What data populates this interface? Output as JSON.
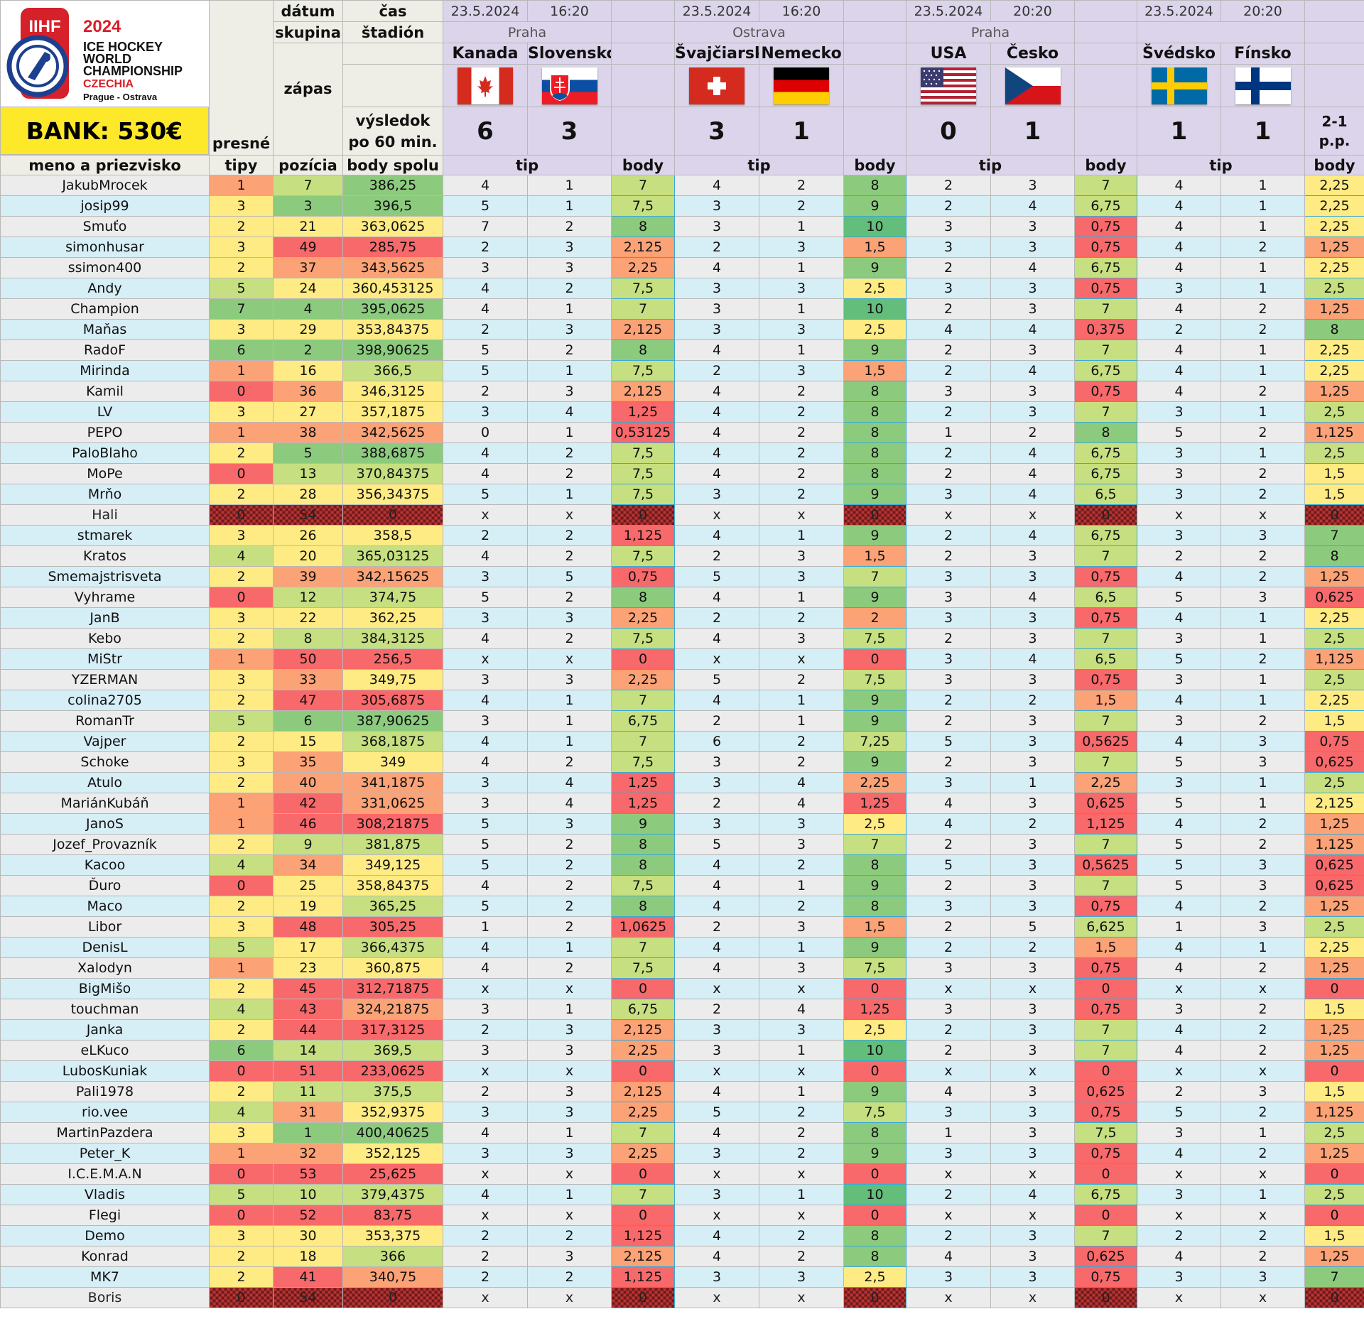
{
  "header": {
    "logo": {
      "brand": "IIHF",
      "year": "2024",
      "line1": "ICE HOCKEY",
      "line2": "WORLD",
      "line3": "CHAMPIONSHIP",
      "country": "CZECHIA",
      "cities": "Prague - Ostrava"
    },
    "bank": "BANK: 530€",
    "labels": {
      "datum": "dátum",
      "cas": "čas",
      "skupina": "skupina",
      "stadion": "štadión",
      "zapas": "zápas",
      "vysledok1": "výsledok",
      "vysledok2": "po 60 min.",
      "presne": "presné",
      "tipy": "tipy",
      "meno": "meno a priezvisko",
      "pozicia": "pozícia",
      "body_spolu": "body spolu",
      "tip": "tip",
      "body": "body"
    },
    "matches": [
      {
        "date": "23.5.2024",
        "time": "16:20",
        "venue": "Praha",
        "home": "Kanada",
        "away": "Slovensko",
        "home_flag": "ca",
        "away_flag": "sk",
        "home_score": "6",
        "away_score": "3",
        "note": ""
      },
      {
        "date": "23.5.2024",
        "time": "16:20",
        "venue": "Ostrava",
        "home": "Švajčiarsko",
        "away": "Nemecko",
        "home_flag": "ch",
        "away_flag": "de",
        "home_score": "3",
        "away_score": "1",
        "note": ""
      },
      {
        "date": "23.5.2024",
        "time": "20:20",
        "venue": "Praha",
        "home": "USA",
        "away": "Česko",
        "home_flag": "us",
        "away_flag": "cz",
        "home_score": "0",
        "away_score": "1",
        "note": ""
      },
      {
        "date": "23.5.2024",
        "time": "20:20",
        "venue": "",
        "home": "Švédsko",
        "away": "Fínsko",
        "home_flag": "se",
        "away_flag": "fi",
        "home_score": "1",
        "away_score": "1",
        "note": "2-1 p.p."
      }
    ]
  },
  "colors": {
    "red": "#f8696b",
    "orange": "#fba276",
    "yellow": "#ffeb84",
    "lime": "#c6df80",
    "green": "#8ccb7e",
    "dark_green": "#63be7b"
  },
  "rows": [
    [
      "JakubMrocek",
      "1",
      "7",
      "386,25",
      "4",
      "1",
      "7",
      "4",
      "2",
      "8",
      "2",
      "3",
      "7",
      "4",
      "1",
      "2,25"
    ],
    [
      "josip99",
      "3",
      "3",
      "396,5",
      "5",
      "1",
      "7,5",
      "3",
      "2",
      "9",
      "2",
      "4",
      "6,75",
      "4",
      "1",
      "2,25"
    ],
    [
      "Smuťo",
      "2",
      "21",
      "363,0625",
      "7",
      "2",
      "8",
      "3",
      "1",
      "10",
      "3",
      "3",
      "0,75",
      "4",
      "1",
      "2,25"
    ],
    [
      "simonhusar",
      "3",
      "49",
      "285,75",
      "2",
      "3",
      "2,125",
      "2",
      "3",
      "1,5",
      "3",
      "3",
      "0,75",
      "4",
      "2",
      "1,25"
    ],
    [
      "ssimon400",
      "2",
      "37",
      "343,5625",
      "3",
      "3",
      "2,25",
      "4",
      "1",
      "9",
      "2",
      "4",
      "6,75",
      "4",
      "1",
      "2,25"
    ],
    [
      "Andy",
      "5",
      "24",
      "360,453125",
      "4",
      "2",
      "7,5",
      "3",
      "3",
      "2,5",
      "3",
      "3",
      "0,75",
      "3",
      "1",
      "2,5"
    ],
    [
      "Champion",
      "7",
      "4",
      "395,0625",
      "4",
      "1",
      "7",
      "3",
      "1",
      "10",
      "2",
      "3",
      "7",
      "4",
      "2",
      "1,25"
    ],
    [
      "Maňas",
      "3",
      "29",
      "353,84375",
      "2",
      "3",
      "2,125",
      "3",
      "3",
      "2,5",
      "4",
      "4",
      "0,375",
      "2",
      "2",
      "8"
    ],
    [
      "RadoF",
      "6",
      "2",
      "398,90625",
      "5",
      "2",
      "8",
      "4",
      "1",
      "9",
      "2",
      "3",
      "7",
      "4",
      "1",
      "2,25"
    ],
    [
      "Mirinda",
      "1",
      "16",
      "366,5",
      "5",
      "1",
      "7,5",
      "2",
      "3",
      "1,5",
      "2",
      "4",
      "6,75",
      "4",
      "1",
      "2,25"
    ],
    [
      "Kamil",
      "0",
      "36",
      "346,3125",
      "2",
      "3",
      "2,125",
      "4",
      "2",
      "8",
      "3",
      "3",
      "0,75",
      "4",
      "2",
      "1,25"
    ],
    [
      "LV",
      "3",
      "27",
      "357,1875",
      "3",
      "4",
      "1,25",
      "4",
      "2",
      "8",
      "2",
      "3",
      "7",
      "3",
      "1",
      "2,5"
    ],
    [
      "PEPO",
      "1",
      "38",
      "342,5625",
      "0",
      "1",
      "0,53125",
      "4",
      "2",
      "8",
      "1",
      "2",
      "8",
      "5",
      "2",
      "1,125"
    ],
    [
      "PaloBlaho",
      "2",
      "5",
      "388,6875",
      "4",
      "2",
      "7,5",
      "4",
      "2",
      "8",
      "2",
      "4",
      "6,75",
      "3",
      "1",
      "2,5"
    ],
    [
      "MoPe",
      "0",
      "13",
      "370,84375",
      "4",
      "2",
      "7,5",
      "4",
      "2",
      "8",
      "2",
      "4",
      "6,75",
      "3",
      "2",
      "1,5"
    ],
    [
      "Mrňo",
      "2",
      "28",
      "356,34375",
      "5",
      "1",
      "7,5",
      "3",
      "2",
      "9",
      "3",
      "4",
      "6,5",
      "3",
      "2",
      "1,5"
    ],
    [
      "Hali",
      "0",
      "54",
      "0",
      "x",
      "x",
      "0",
      "x",
      "x",
      "0",
      "x",
      "x",
      "0",
      "x",
      "x",
      "0"
    ],
    [
      "stmarek",
      "3",
      "26",
      "358,5",
      "2",
      "2",
      "1,125",
      "4",
      "1",
      "9",
      "2",
      "4",
      "6,75",
      "3",
      "3",
      "7"
    ],
    [
      "Kratos",
      "4",
      "20",
      "365,03125",
      "4",
      "2",
      "7,5",
      "2",
      "3",
      "1,5",
      "2",
      "3",
      "7",
      "2",
      "2",
      "8"
    ],
    [
      "Smemajstrisveta",
      "2",
      "39",
      "342,15625",
      "3",
      "5",
      "0,75",
      "5",
      "3",
      "7",
      "3",
      "3",
      "0,75",
      "4",
      "2",
      "1,25"
    ],
    [
      "Vyhrame",
      "0",
      "12",
      "374,75",
      "5",
      "2",
      "8",
      "4",
      "1",
      "9",
      "3",
      "4",
      "6,5",
      "5",
      "3",
      "0,625"
    ],
    [
      "JanB",
      "3",
      "22",
      "362,25",
      "3",
      "3",
      "2,25",
      "2",
      "2",
      "2",
      "3",
      "3",
      "0,75",
      "4",
      "1",
      "2,25"
    ],
    [
      "Kebo",
      "2",
      "8",
      "384,3125",
      "4",
      "2",
      "7,5",
      "4",
      "3",
      "7,5",
      "2",
      "3",
      "7",
      "3",
      "1",
      "2,5"
    ],
    [
      "MiStr",
      "1",
      "50",
      "256,5",
      "x",
      "x",
      "0",
      "x",
      "x",
      "0",
      "3",
      "4",
      "6,5",
      "5",
      "2",
      "1,125"
    ],
    [
      "YZERMAN",
      "3",
      "33",
      "349,75",
      "3",
      "3",
      "2,25",
      "5",
      "2",
      "7,5",
      "3",
      "3",
      "0,75",
      "3",
      "1",
      "2,5"
    ],
    [
      "colina2705",
      "2",
      "47",
      "305,6875",
      "4",
      "1",
      "7",
      "4",
      "1",
      "9",
      "2",
      "2",
      "1,5",
      "4",
      "1",
      "2,25"
    ],
    [
      "RomanTr",
      "5",
      "6",
      "387,90625",
      "3",
      "1",
      "6,75",
      "2",
      "1",
      "9",
      "2",
      "3",
      "7",
      "3",
      "2",
      "1,5"
    ],
    [
      "Vajper",
      "2",
      "15",
      "368,1875",
      "4",
      "1",
      "7",
      "6",
      "2",
      "7,25",
      "5",
      "3",
      "0,5625",
      "4",
      "3",
      "0,75"
    ],
    [
      "Schoke",
      "3",
      "35",
      "349",
      "4",
      "2",
      "7,5",
      "3",
      "2",
      "9",
      "2",
      "3",
      "7",
      "5",
      "3",
      "0,625"
    ],
    [
      "Atulo",
      "2",
      "40",
      "341,1875",
      "3",
      "4",
      "1,25",
      "3",
      "4",
      "2,25",
      "3",
      "1",
      "2,25",
      "3",
      "1",
      "2,5"
    ],
    [
      "MariánKubáň",
      "1",
      "42",
      "331,0625",
      "3",
      "4",
      "1,25",
      "2",
      "4",
      "1,25",
      "4",
      "3",
      "0,625",
      "5",
      "1",
      "2,125"
    ],
    [
      "JanoS",
      "1",
      "46",
      "308,21875",
      "5",
      "3",
      "9",
      "3",
      "3",
      "2,5",
      "4",
      "2",
      "1,125",
      "4",
      "2",
      "1,25"
    ],
    [
      "Jozef_Provazník",
      "2",
      "9",
      "381,875",
      "5",
      "2",
      "8",
      "5",
      "3",
      "7",
      "2",
      "3",
      "7",
      "5",
      "2",
      "1,125"
    ],
    [
      "Kacoo",
      "4",
      "34",
      "349,125",
      "5",
      "2",
      "8",
      "4",
      "2",
      "8",
      "5",
      "3",
      "0,5625",
      "5",
      "3",
      "0,625"
    ],
    [
      "Ďuro",
      "0",
      "25",
      "358,84375",
      "4",
      "2",
      "7,5",
      "4",
      "1",
      "9",
      "2",
      "3",
      "7",
      "5",
      "3",
      "0,625"
    ],
    [
      "Maco",
      "2",
      "19",
      "365,25",
      "5",
      "2",
      "8",
      "4",
      "2",
      "8",
      "3",
      "3",
      "0,75",
      "4",
      "2",
      "1,25"
    ],
    [
      "Libor",
      "3",
      "48",
      "305,25",
      "1",
      "2",
      "1,0625",
      "2",
      "3",
      "1,5",
      "2",
      "5",
      "6,625",
      "1",
      "3",
      "2,5"
    ],
    [
      "DenisL",
      "5",
      "17",
      "366,4375",
      "4",
      "1",
      "7",
      "4",
      "1",
      "9",
      "2",
      "2",
      "1,5",
      "4",
      "1",
      "2,25"
    ],
    [
      "Xalodyn",
      "1",
      "23",
      "360,875",
      "4",
      "2",
      "7,5",
      "4",
      "3",
      "7,5",
      "3",
      "3",
      "0,75",
      "4",
      "2",
      "1,25"
    ],
    [
      "BigMišo",
      "2",
      "45",
      "312,71875",
      "x",
      "x",
      "0",
      "x",
      "x",
      "0",
      "x",
      "x",
      "0",
      "x",
      "x",
      "0"
    ],
    [
      "touchman",
      "4",
      "43",
      "324,21875",
      "3",
      "1",
      "6,75",
      "2",
      "4",
      "1,25",
      "3",
      "3",
      "0,75",
      "3",
      "2",
      "1,5"
    ],
    [
      "Janka",
      "2",
      "44",
      "317,3125",
      "2",
      "3",
      "2,125",
      "3",
      "3",
      "2,5",
      "2",
      "3",
      "7",
      "4",
      "2",
      "1,25"
    ],
    [
      "eLKuco",
      "6",
      "14",
      "369,5",
      "3",
      "3",
      "2,25",
      "3",
      "1",
      "10",
      "2",
      "3",
      "7",
      "4",
      "2",
      "1,25"
    ],
    [
      "LubosKuniak",
      "0",
      "51",
      "233,0625",
      "x",
      "x",
      "0",
      "x",
      "x",
      "0",
      "x",
      "x",
      "0",
      "x",
      "x",
      "0"
    ],
    [
      "Pali1978",
      "2",
      "11",
      "375,5",
      "2",
      "3",
      "2,125",
      "4",
      "1",
      "9",
      "4",
      "3",
      "0,625",
      "2",
      "3",
      "1,5"
    ],
    [
      "rio.vee",
      "4",
      "31",
      "352,9375",
      "3",
      "3",
      "2,25",
      "5",
      "2",
      "7,5",
      "3",
      "3",
      "0,75",
      "5",
      "2",
      "1,125"
    ],
    [
      "MartinPazdera",
      "3",
      "1",
      "400,40625",
      "4",
      "1",
      "7",
      "4",
      "2",
      "8",
      "1",
      "3",
      "7,5",
      "3",
      "1",
      "2,5"
    ],
    [
      "Peter_K",
      "1",
      "32",
      "352,125",
      "3",
      "3",
      "2,25",
      "3",
      "2",
      "9",
      "3",
      "3",
      "0,75",
      "4",
      "2",
      "1,25"
    ],
    [
      "I.C.E.M.A.N",
      "0",
      "53",
      "25,625",
      "x",
      "x",
      "0",
      "x",
      "x",
      "0",
      "x",
      "x",
      "0",
      "x",
      "x",
      "0"
    ],
    [
      "Vladis",
      "5",
      "10",
      "379,4375",
      "4",
      "1",
      "7",
      "3",
      "1",
      "10",
      "2",
      "4",
      "6,75",
      "3",
      "1",
      "2,5"
    ],
    [
      "Flegi",
      "0",
      "52",
      "83,75",
      "x",
      "x",
      "0",
      "x",
      "x",
      "0",
      "x",
      "x",
      "0",
      "x",
      "x",
      "0"
    ],
    [
      "Demo",
      "3",
      "30",
      "353,375",
      "2",
      "2",
      "1,125",
      "4",
      "2",
      "8",
      "2",
      "3",
      "7",
      "2",
      "2",
      "1,5"
    ],
    [
      "Konrad",
      "2",
      "18",
      "366",
      "2",
      "3",
      "2,125",
      "4",
      "2",
      "8",
      "4",
      "3",
      "0,625",
      "4",
      "2",
      "1,25"
    ],
    [
      "MK7",
      "2",
      "41",
      "340,75",
      "2",
      "2",
      "1,125",
      "3",
      "3",
      "2,5",
      "3",
      "3",
      "0,75",
      "3",
      "3",
      "7"
    ],
    [
      "Boris",
      "0",
      "54",
      "0",
      "x",
      "x",
      "0",
      "x",
      "x",
      "0",
      "x",
      "x",
      "0",
      "x",
      "x",
      "0"
    ]
  ],
  "retired": [
    "Hali",
    "Boris"
  ]
}
